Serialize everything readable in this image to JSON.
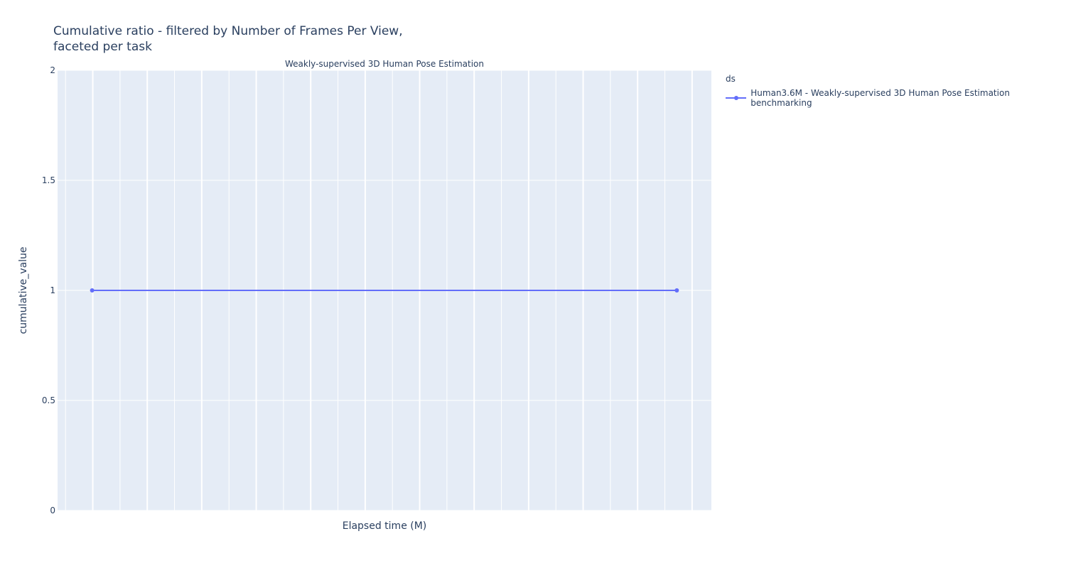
{
  "title_line1": "Cumulative ratio - filtered by Number of Frames Per View,",
  "title_line2": "faceted per task",
  "colors": {
    "plot_bg": "#e5ecf6",
    "grid": "#ffffff",
    "series": "#636efa",
    "text": "#2a3f5f"
  },
  "chart_data": {
    "type": "line",
    "facet_title": "Weakly-supervised 3D Human Pose Estimation",
    "xlabel": "Elapsed time (M)",
    "ylabel": "cumulative_value",
    "ylim": [
      0,
      2
    ],
    "yticks": [
      0,
      0.5,
      1,
      1.5,
      2
    ],
    "ytick_labels": [
      "0",
      "0.5",
      "1",
      "1.5",
      "2"
    ],
    "xlim": [
      -1.3,
      23.3
    ],
    "xgrid_minor_count": 24,
    "legend_title": "ds",
    "legend_placement": "top-right outside",
    "series": [
      {
        "name": "Human3.6M - Weakly-supervised 3D Human Pose Estimation benchmarking",
        "x": [
          0,
          22
        ],
        "y": [
          1,
          1
        ]
      }
    ]
  }
}
